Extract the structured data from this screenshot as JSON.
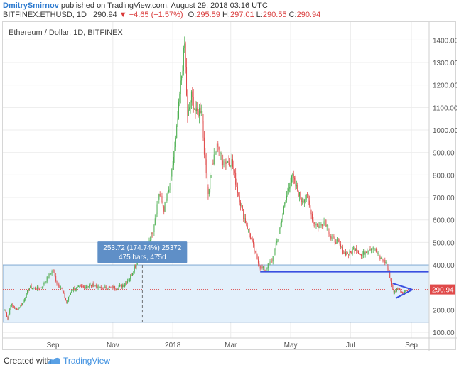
{
  "header": {
    "author": "DmitrySmirnov",
    "published_text": " published on TradingView.com, August 29, 2018 03:16 UTC",
    "symbol": "BITFINEX:ETHUSD, 1D",
    "last": "290.94",
    "change": "−4.65 (−1.57%)",
    "o_label": "O:",
    "o_value": "295.59",
    "h_label": "H:",
    "h_value": "297.01",
    "l_label": "L:",
    "l_value": "290.55",
    "c_label": "C:",
    "c_value": "290.94"
  },
  "footer": {
    "created_with": "Created with",
    "brand": "TradingView",
    "logo_icon": "tradingview-logo-icon"
  },
  "chart_data": {
    "type": "candlestick",
    "title": "Ethereum / Dollar, 1D, BITFINEX",
    "y_ticks": [
      100,
      200,
      300,
      400,
      500,
      600,
      700,
      800,
      900,
      1000,
      1100,
      1200,
      1300,
      1400
    ],
    "y_tick_labels": [
      "100.00",
      "200.00",
      "300.00",
      "400.00",
      "500.00",
      "600.00",
      "700.00",
      "800.00",
      "900.00",
      "1000.00",
      "1100.00",
      "1200.00",
      "1300.00",
      "1400.00"
    ],
    "ylim": [
      75,
      1480
    ],
    "x_range": [
      "2017-07-12",
      "2018-09-19"
    ],
    "x_ticks": [
      {
        "label": "Sep",
        "date": "2017-09-01"
      },
      {
        "label": "Nov",
        "date": "2017-11-01"
      },
      {
        "label": "2018",
        "date": "2018-01-01"
      },
      {
        "label": "Mar",
        "date": "2018-03-01"
      },
      {
        "label": "May",
        "date": "2018-05-01"
      },
      {
        "label": "Jul",
        "date": "2018-07-01"
      },
      {
        "label": "Sep",
        "date": "2018-09-01"
      }
    ],
    "price_path": [
      [
        "2017-07-14",
        200
      ],
      [
        "2017-07-17",
        160
      ],
      [
        "2017-07-20",
        225
      ],
      [
        "2017-07-26",
        200
      ],
      [
        "2017-08-01",
        230
      ],
      [
        "2017-08-08",
        300
      ],
      [
        "2017-08-14",
        295
      ],
      [
        "2017-08-20",
        300
      ],
      [
        "2017-08-26",
        340
      ],
      [
        "2017-09-01",
        380
      ],
      [
        "2017-09-05",
        320
      ],
      [
        "2017-09-10",
        295
      ],
      [
        "2017-09-15",
        230
      ],
      [
        "2017-09-20",
        290
      ],
      [
        "2017-09-28",
        300
      ],
      [
        "2017-10-05",
        305
      ],
      [
        "2017-10-12",
        310
      ],
      [
        "2017-10-20",
        295
      ],
      [
        "2017-10-28",
        300
      ],
      [
        "2017-11-05",
        300
      ],
      [
        "2017-11-12",
        310
      ],
      [
        "2017-11-18",
        340
      ],
      [
        "2017-11-24",
        400
      ],
      [
        "2017-11-29",
        470
      ],
      [
        "2017-12-05",
        470
      ],
      [
        "2017-12-12",
        560
      ],
      [
        "2017-12-18",
        720
      ],
      [
        "2017-12-23",
        650
      ],
      [
        "2017-12-29",
        740
      ],
      [
        "2018-01-04",
        950
      ],
      [
        "2018-01-09",
        1200
      ],
      [
        "2018-01-13",
        1380
      ],
      [
        "2018-01-16",
        1050
      ],
      [
        "2018-01-20",
        1150
      ],
      [
        "2018-01-25",
        1070
      ],
      [
        "2018-01-30",
        1100
      ],
      [
        "2018-02-03",
        850
      ],
      [
        "2018-02-06",
        720
      ],
      [
        "2018-02-10",
        840
      ],
      [
        "2018-02-16",
        940
      ],
      [
        "2018-02-20",
        860
      ],
      [
        "2018-02-25",
        860
      ],
      [
        "2018-03-02",
        860
      ],
      [
        "2018-03-08",
        730
      ],
      [
        "2018-03-14",
        620
      ],
      [
        "2018-03-20",
        540
      ],
      [
        "2018-03-26",
        450
      ],
      [
        "2018-03-31",
        390
      ],
      [
        "2018-04-05",
        380
      ],
      [
        "2018-04-12",
        420
      ],
      [
        "2018-04-18",
        520
      ],
      [
        "2018-04-24",
        650
      ],
      [
        "2018-05-02",
        800
      ],
      [
        "2018-05-07",
        740
      ],
      [
        "2018-05-12",
        690
      ],
      [
        "2018-05-18",
        700
      ],
      [
        "2018-05-24",
        590
      ],
      [
        "2018-05-30",
        570
      ],
      [
        "2018-06-05",
        600
      ],
      [
        "2018-06-11",
        520
      ],
      [
        "2018-06-18",
        500
      ],
      [
        "2018-06-24",
        455
      ],
      [
        "2018-06-30",
        450
      ],
      [
        "2018-07-06",
        480
      ],
      [
        "2018-07-12",
        440
      ],
      [
        "2018-07-18",
        470
      ],
      [
        "2018-07-24",
        480
      ],
      [
        "2018-07-31",
        430
      ],
      [
        "2018-08-06",
        410
      ],
      [
        "2018-08-10",
        350
      ],
      [
        "2018-08-14",
        275
      ],
      [
        "2018-08-18",
        300
      ],
      [
        "2018-08-23",
        275
      ],
      [
        "2018-08-28",
        290
      ]
    ],
    "last_price": 290.94,
    "last_price_label": "290.94",
    "support_line": {
      "from": [
        "2018-03-31",
        370
      ],
      "to": [
        "2018-09-19",
        370
      ]
    },
    "triangle": {
      "apex": [
        "2018-09-02",
        290
      ],
      "upper_start": [
        "2018-08-13",
        318
      ],
      "lower_start": [
        "2018-08-16",
        252
      ]
    },
    "range_box": {
      "from": "2017-07-12",
      "to": "2018-09-19",
      "low": 145,
      "high": 400
    },
    "measure": {
      "date": "2017-12-01",
      "from": 145,
      "to": 400,
      "label_line1": "253.72 (174.74%) 25372",
      "label_line2": "475 bars, 475d"
    },
    "dashed_guide": {
      "price": 275
    },
    "colors": {
      "up": "#4caf50",
      "down": "#e04a4a",
      "blue_line": "#3a4fe0",
      "box_fill": "#e3f0fb",
      "box_stroke": "#7fa9d3",
      "label_bg": "#5f8fc7"
    }
  }
}
